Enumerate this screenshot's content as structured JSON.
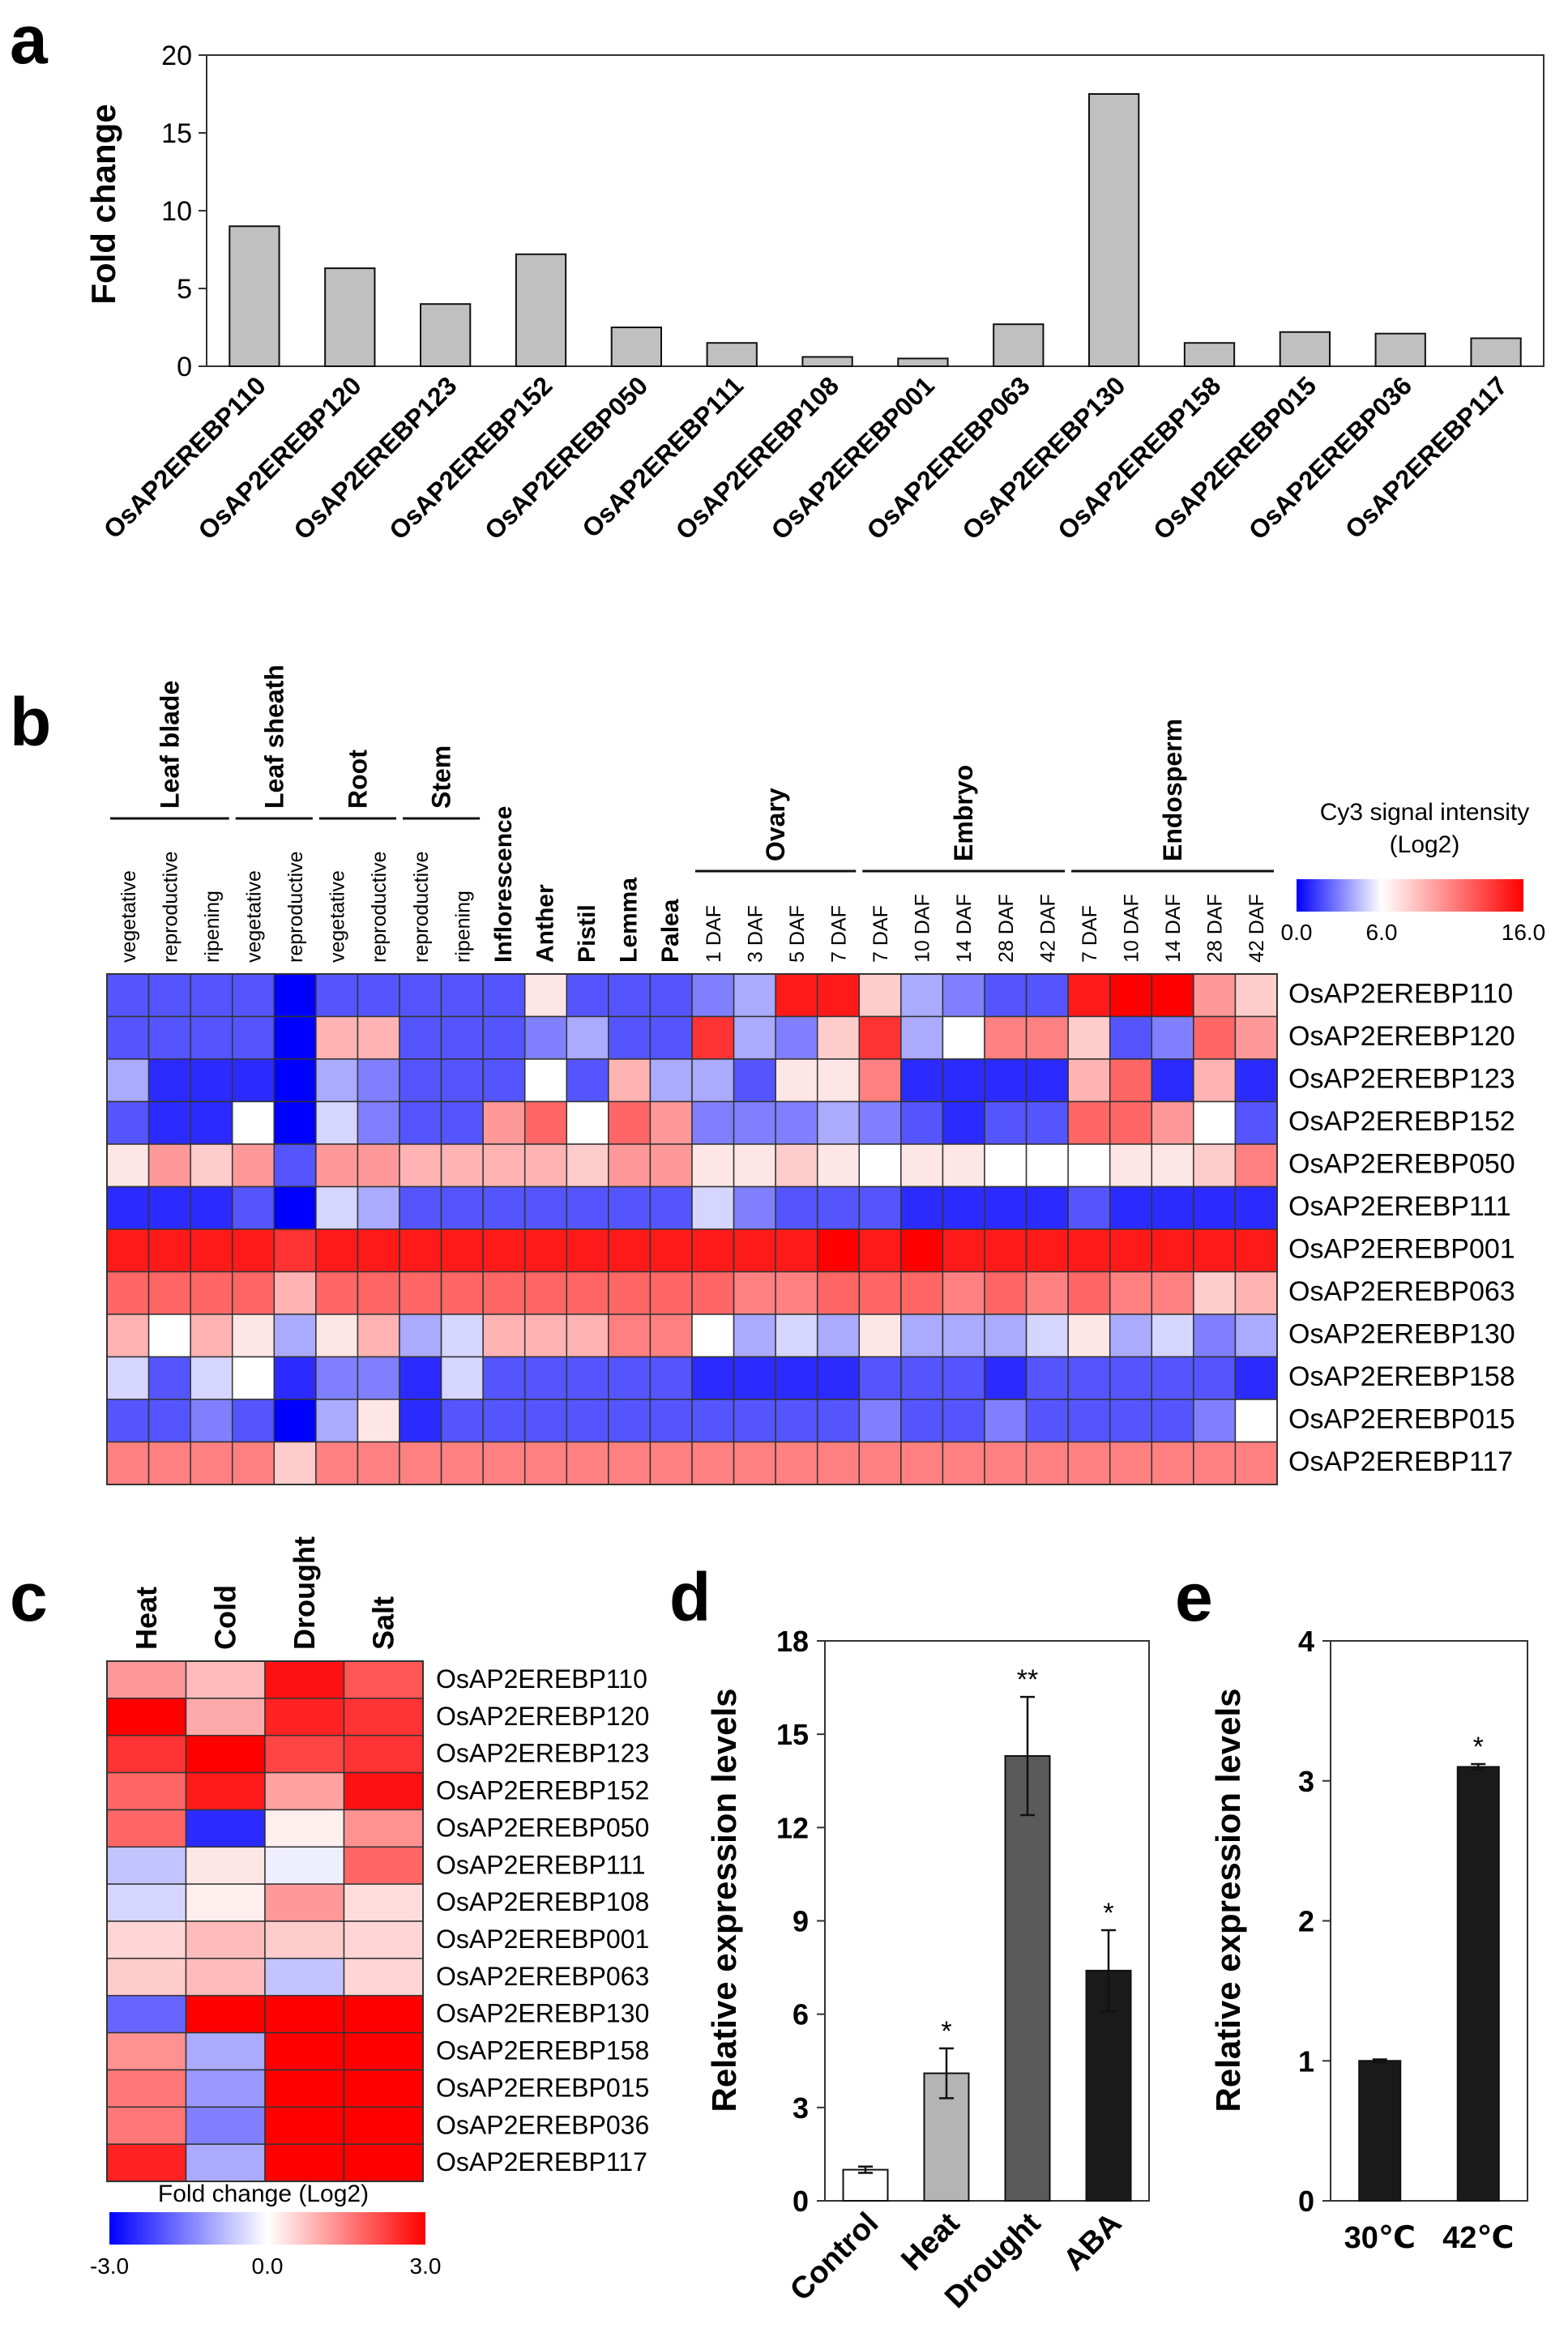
{
  "panels": {
    "a": "a",
    "b": "b",
    "c": "c",
    "d": "d",
    "e": "e"
  },
  "colors": {
    "bar_a": "#c0c0c0",
    "low": "#0000ff",
    "mid": "#ffffff",
    "high": "#ff0000",
    "bar_dark": "#1a1a1a",
    "bar_mid": "#5a5a5a",
    "bar_light": "#b4b4b4"
  },
  "chart_data": [
    {
      "id": "a",
      "type": "bar",
      "ylabel": "Fold change",
      "ylim": [
        0,
        20
      ],
      "yticks": [
        "0",
        "5",
        "10",
        "15",
        "20"
      ],
      "categories": [
        "OsAP2EREBP110",
        "OsAP2EREBP120",
        "OsAP2EREBP123",
        "OsAP2EREBP152",
        "OsAP2EREBP050",
        "OsAP2EREBP111",
        "OsAP2EREBP108",
        "OsAP2EREBP001",
        "OsAP2EREBP063",
        "OsAP2EREBP130",
        "OsAP2EREBP158",
        "OsAP2EREBP015",
        "OsAP2EREBP036",
        "OsAP2EREBP117"
      ],
      "values": [
        9.0,
        6.3,
        4.0,
        7.2,
        2.5,
        1.5,
        0.6,
        0.5,
        2.7,
        17.5,
        1.5,
        2.2,
        2.1,
        1.8
      ]
    },
    {
      "id": "b",
      "type": "heatmap",
      "legend_title": "Cy3 signal intensity",
      "legend_subtitle": "(Log2)",
      "legend_ticks": [
        "0.0",
        "6.0",
        "16.0"
      ],
      "groups": [
        {
          "label": "Leaf blade",
          "span": [
            0,
            2
          ]
        },
        {
          "label": "Leaf sheath",
          "span": [
            3,
            4
          ]
        },
        {
          "label": "Root",
          "span": [
            5,
            6
          ]
        },
        {
          "label": "Stem",
          "span": [
            7,
            8
          ]
        },
        {
          "label": "Ovary",
          "span": [
            14,
            17
          ]
        },
        {
          "label": "Embryo",
          "span": [
            18,
            22
          ]
        },
        {
          "label": "Endosperm",
          "span": [
            23,
            27
          ]
        }
      ],
      "columns": [
        "vegetative",
        "reproductive",
        "ripening",
        "vegetative",
        "reproductive",
        "vegetative",
        "reproductive",
        "reproductive",
        "ripening",
        "Inflorescence",
        "Anther",
        "Pistil",
        "Lemma",
        "Palea",
        "1 DAF",
        "3 DAF",
        "5 DAF",
        "7 DAF",
        "7 DAF",
        "10 DAF",
        "14 DAF",
        "28 DAF",
        "42 DAF",
        "7 DAF",
        "10 DAF",
        "14 DAF",
        "28 DAF",
        "42 DAF"
      ],
      "bold_columns": [
        9,
        10,
        11,
        12,
        13
      ],
      "rows": [
        "OsAP2EREBP110",
        "OsAP2EREBP120",
        "OsAP2EREBP123",
        "OsAP2EREBP152",
        "OsAP2EREBP050",
        "OsAP2EREBP111",
        "OsAP2EREBP001",
        "OsAP2EREBP063",
        "OsAP2EREBP130",
        "OsAP2EREBP158",
        "OsAP2EREBP015",
        "OsAP2EREBP117"
      ],
      "range": [
        0,
        6,
        16
      ],
      "values": [
        [
          2,
          2,
          2,
          2,
          0,
          2,
          2,
          2,
          2,
          2,
          7,
          2,
          2,
          2,
          3,
          4,
          15,
          15,
          8,
          4,
          3,
          2,
          2,
          15,
          16,
          16,
          10,
          8
        ],
        [
          2,
          2,
          2,
          2,
          0,
          9,
          9,
          2,
          2,
          2,
          3,
          4,
          2,
          2,
          14,
          4,
          3,
          8,
          14,
          4,
          6,
          11,
          11,
          8,
          2,
          3,
          12,
          10
        ],
        [
          4,
          1,
          1,
          1,
          0,
          4,
          3,
          2,
          2,
          2,
          6,
          2,
          9,
          4,
          4,
          2,
          7,
          7,
          11,
          1,
          1,
          1,
          1,
          9,
          12,
          1,
          9,
          1
        ],
        [
          2,
          1,
          1,
          6,
          0,
          5,
          3,
          2,
          2,
          10,
          12,
          6,
          12,
          10,
          3,
          3,
          3,
          4,
          3,
          2,
          1,
          2,
          2,
          12,
          12,
          10,
          6,
          2
        ],
        [
          7,
          10,
          8,
          10,
          2,
          10,
          10,
          9,
          9,
          9,
          9,
          8,
          10,
          10,
          7,
          7,
          8,
          7,
          6,
          7,
          7,
          6,
          6,
          6,
          7,
          7,
          8,
          11
        ],
        [
          1,
          1,
          1,
          2,
          0,
          5,
          4,
          2,
          2,
          2,
          2,
          2,
          2,
          2,
          5,
          3,
          2,
          2,
          2,
          1,
          1,
          1,
          1,
          2,
          1,
          1,
          1,
          1
        ],
        [
          15,
          15,
          15,
          15,
          14,
          15,
          15,
          15,
          15,
          15,
          15,
          15,
          15,
          15,
          15,
          15,
          15,
          16,
          15,
          16,
          15,
          15,
          15,
          15,
          15,
          15,
          15,
          15
        ],
        [
          12,
          12,
          12,
          12,
          9,
          12,
          12,
          12,
          12,
          12,
          12,
          12,
          12,
          12,
          12,
          11,
          11,
          12,
          12,
          12,
          11,
          12,
          11,
          12,
          11,
          11,
          8,
          9
        ],
        [
          9,
          6,
          9,
          7,
          4,
          7,
          9,
          4,
          5,
          9,
          9,
          9,
          11,
          11,
          6,
          4,
          5,
          4,
          7,
          4,
          4,
          4,
          5,
          7,
          4,
          5,
          3,
          4
        ],
        [
          5,
          2,
          5,
          6,
          1,
          3,
          3,
          1,
          5,
          2,
          2,
          2,
          2,
          2,
          1,
          1,
          1,
          1,
          2,
          2,
          2,
          1,
          2,
          2,
          2,
          2,
          2,
          1
        ],
        [
          2,
          2,
          3,
          2,
          0,
          4,
          7,
          1,
          2,
          2,
          2,
          2,
          2,
          2,
          2,
          2,
          2,
          2,
          3,
          2,
          2,
          3,
          2,
          2,
          2,
          2,
          3,
          6
        ],
        [
          11,
          11,
          11,
          11,
          8,
          11,
          11,
          11,
          11,
          11,
          11,
          11,
          11,
          11,
          11,
          11,
          11,
          11,
          11,
          11,
          11,
          11,
          11,
          11,
          11,
          11,
          11,
          11
        ]
      ]
    },
    {
      "id": "c",
      "type": "heatmap",
      "columns": [
        "Heat",
        "Cold",
        "Drought",
        "Salt"
      ],
      "rows": [
        "OsAP2EREBP110",
        "OsAP2EREBP120",
        "OsAP2EREBP123",
        "OsAP2EREBP152",
        "OsAP2EREBP050",
        "OsAP2EREBP111",
        "OsAP2EREBP108",
        "OsAP2EREBP001",
        "OsAP2EREBP063",
        "OsAP2EREBP130",
        "OsAP2EREBP158",
        "OsAP2EREBP015",
        "OsAP2EREBP036",
        "OsAP2EREBP117"
      ],
      "range": [
        -3,
        0,
        3
      ],
      "legend_title": "Fold change (Log2)",
      "legend_ticks": [
        "-3.0",
        "0.0",
        "3.0"
      ],
      "values": [
        [
          1.2,
          0.8,
          2.8,
          2.0
        ],
        [
          3.0,
          1.0,
          2.6,
          2.4
        ],
        [
          2.4,
          3.0,
          2.2,
          2.4
        ],
        [
          1.8,
          2.7,
          1.1,
          2.8
        ],
        [
          1.8,
          -2.5,
          0.2,
          1.3
        ],
        [
          -0.7,
          0.3,
          -0.2,
          1.8
        ],
        [
          -0.5,
          0.2,
          1.2,
          0.4
        ],
        [
          0.5,
          0.8,
          0.6,
          0.5
        ],
        [
          0.6,
          0.8,
          -0.7,
          0.5
        ],
        [
          -1.8,
          3.0,
          3.0,
          3.0
        ],
        [
          1.3,
          -1.0,
          3.0,
          3.0
        ],
        [
          1.6,
          -1.2,
          3.0,
          3.0
        ],
        [
          1.6,
          -1.5,
          3.0,
          3.0
        ],
        [
          2.6,
          -1.0,
          3.0,
          3.0
        ]
      ]
    },
    {
      "id": "d",
      "type": "bar",
      "ylabel": "Relative expression levels",
      "ylim": [
        0,
        18
      ],
      "yticks": [
        "0",
        "3",
        "6",
        "9",
        "12",
        "15",
        "18"
      ],
      "categories": [
        "Control",
        "Heat",
        "Drought",
        "ABA"
      ],
      "values": [
        1.0,
        4.1,
        14.3,
        7.4
      ],
      "errors": [
        0.1,
        0.8,
        1.9,
        1.3
      ],
      "significance": [
        "",
        "*",
        "**",
        "*"
      ]
    },
    {
      "id": "e",
      "type": "bar",
      "ylabel": "Relative expression levels",
      "ylim": [
        0,
        4
      ],
      "yticks": [
        "0",
        "1",
        "2",
        "3",
        "4"
      ],
      "categories": [
        "30℃",
        "42℃"
      ],
      "values": [
        1.0,
        3.1
      ],
      "errors": [
        0.01,
        0.02
      ],
      "significance": [
        "",
        "*"
      ]
    }
  ]
}
